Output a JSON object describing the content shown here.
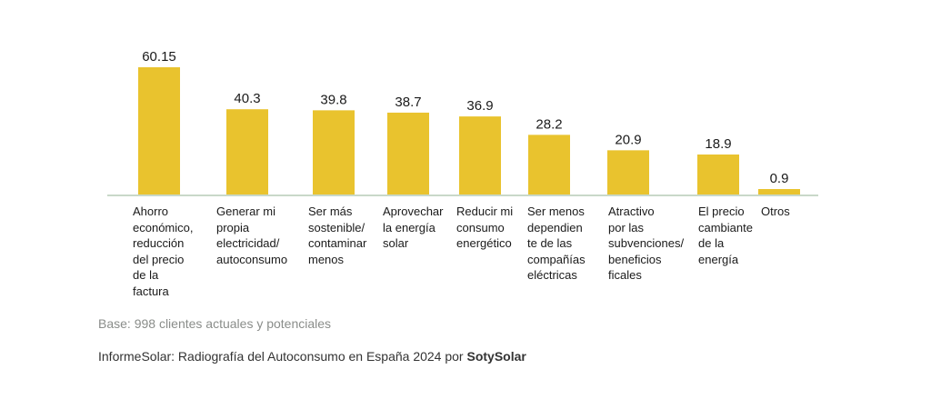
{
  "colors": {
    "bar": "#e9c32e",
    "axis": "#c9d8c9"
  },
  "chart_data": {
    "type": "bar",
    "title": "",
    "xlabel": "",
    "ylabel": "",
    "ylim": [
      0,
      65
    ],
    "grid": false,
    "categories": [
      "Ahorro\neconómico,\nreducción\ndel precio\nde la\nfactura",
      "Generar mi\npropia\nelectricidad/\nautoconsumo",
      "Ser más\nsostenible/\ncontaminar\nmenos",
      "Aprovechar\nla energía\nsolar",
      "Reducir mi\nconsumo\nenergético",
      "Ser menos\ndependien\nte de las\ncompañías\neléctricas",
      "Atractivo\npor las\nsubvenciones/\nbeneficios\nficales",
      "El precio\ncambiante\nde la\nenergía",
      "Otros"
    ],
    "values": [
      60.15,
      40.3,
      39.8,
      38.7,
      36.9,
      28.2,
      20.9,
      18.9,
      0.9
    ],
    "value_labels": [
      "60.15",
      "40.3",
      "39.8",
      "38.7",
      "36.9",
      "28.2",
      "20.9",
      "18.9",
      "0.9"
    ]
  },
  "footer": {
    "base": "Base: 998 clientes actuales y potenciales",
    "source_prefix": "InformeSolar: Radiografía del Autoconsumo en España 2024 por ",
    "source_brand": "SotySolar"
  }
}
